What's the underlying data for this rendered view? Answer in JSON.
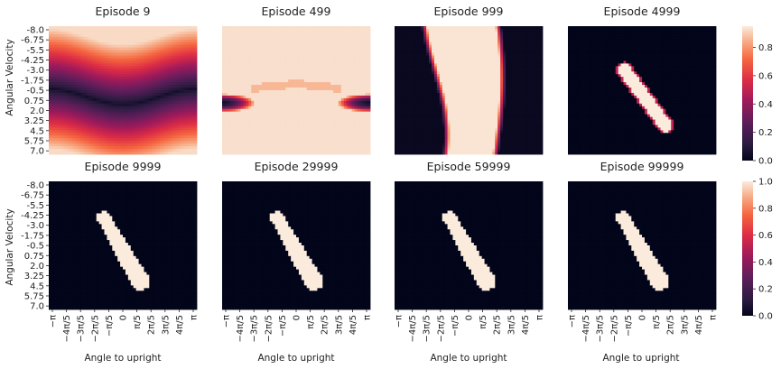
{
  "figure": {
    "ylabel": "Angular Velocity",
    "xlabel": "Angle to upright"
  },
  "chart_data": {
    "type": "heatmap",
    "y_ticks": [
      "-8.0",
      "-6.75",
      "-5.5",
      "-4.25",
      "-3.0",
      "-1.75",
      "-0.5",
      "0.75",
      "2.0",
      "3.25",
      "4.5",
      "5.75",
      "7.0"
    ],
    "x_ticks": [
      "−π",
      "−4π/5",
      "−3π/5",
      "−2π/5",
      "−π/5",
      "0",
      "π/5",
      "2π/5",
      "3π/5",
      "4π/5",
      "π"
    ],
    "colormap": "rocket",
    "rows": [
      {
        "colorbar_ticks": [
          "0.0",
          "0.2",
          "0.4",
          "0.6",
          "0.8"
        ],
        "vmin": 0.0,
        "vmax": 0.95,
        "panels": [
          {
            "title": "Episode 9",
            "pattern": "band"
          },
          {
            "title": "Episode 499",
            "pattern": "mostly_high"
          },
          {
            "title": "Episode 999",
            "pattern": "vertical_band"
          },
          {
            "title": "Episode 4999",
            "pattern": "diagonal_stripe"
          }
        ]
      },
      {
        "colorbar_ticks": [
          "0.0",
          "0.2",
          "0.4",
          "0.6",
          "0.8",
          "1.0"
        ],
        "vmin": 0.0,
        "vmax": 1.0,
        "panels": [
          {
            "title": "Episode 9999",
            "pattern": "diagonal_blob"
          },
          {
            "title": "Episode 29999",
            "pattern": "diagonal_blob"
          },
          {
            "title": "Episode 59999",
            "pattern": "diagonal_blob"
          },
          {
            "title": "Episode 99999",
            "pattern": "diagonal_blob"
          }
        ]
      }
    ]
  }
}
